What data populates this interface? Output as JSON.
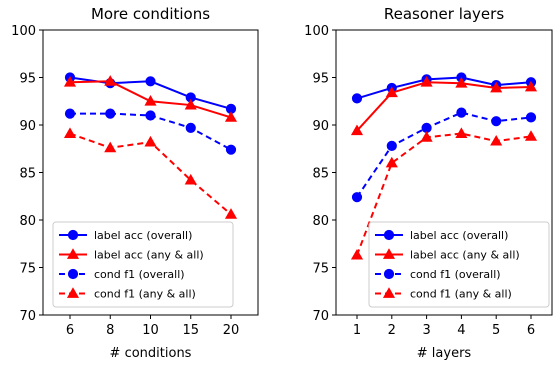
{
  "colors": {
    "blue": "#0000ff",
    "red": "#ff0000"
  },
  "chart_data": [
    {
      "type": "line",
      "title": "More conditions",
      "xlabel": "# conditions",
      "ylabel": "",
      "categories": [
        "6",
        "8",
        "10",
        "15",
        "20"
      ],
      "ylim": [
        70,
        100
      ],
      "yticks": [
        70,
        75,
        80,
        85,
        90,
        95,
        100
      ],
      "grid": false,
      "legend_position": "lower-left",
      "series": [
        {
          "name": "label acc (overall)",
          "color": "blue",
          "linestyle": "solid",
          "marker": "circle",
          "values": [
            95.0,
            94.4,
            94.6,
            92.9,
            91.7
          ]
        },
        {
          "name": "label acc (any & all)",
          "color": "red",
          "linestyle": "solid",
          "marker": "triangle",
          "values": [
            94.5,
            94.6,
            92.5,
            92.1,
            90.8
          ]
        },
        {
          "name": "cond f1 (overall)",
          "color": "blue",
          "linestyle": "dashed",
          "marker": "circle",
          "values": [
            91.2,
            91.2,
            91.0,
            89.7,
            87.4
          ]
        },
        {
          "name": "cond f1 (any & all)",
          "color": "red",
          "linestyle": "dashed",
          "marker": "triangle",
          "values": [
            89.1,
            87.6,
            88.2,
            84.2,
            80.6
          ]
        }
      ]
    },
    {
      "type": "line",
      "title": "Reasoner layers",
      "xlabel": "# layers",
      "ylabel": "",
      "categories": [
        "1",
        "2",
        "3",
        "4",
        "5",
        "6"
      ],
      "ylim": [
        70,
        100
      ],
      "yticks": [
        70,
        75,
        80,
        85,
        90,
        95,
        100
      ],
      "grid": false,
      "legend_position": "lower-right",
      "series": [
        {
          "name": "label acc (overall)",
          "color": "blue",
          "linestyle": "solid",
          "marker": "circle",
          "values": [
            92.8,
            93.9,
            94.8,
            95.0,
            94.2,
            94.5
          ]
        },
        {
          "name": "label acc (any & all)",
          "color": "red",
          "linestyle": "solid",
          "marker": "triangle",
          "values": [
            89.4,
            93.4,
            94.5,
            94.4,
            93.9,
            94.0
          ]
        },
        {
          "name": "cond f1 (overall)",
          "color": "blue",
          "linestyle": "dashed",
          "marker": "circle",
          "values": [
            82.4,
            87.8,
            89.7,
            91.3,
            90.4,
            90.8
          ]
        },
        {
          "name": "cond f1 (any & all)",
          "color": "red",
          "linestyle": "dashed",
          "marker": "triangle",
          "values": [
            76.3,
            86.0,
            88.7,
            89.1,
            88.3,
            88.8
          ]
        }
      ]
    }
  ]
}
